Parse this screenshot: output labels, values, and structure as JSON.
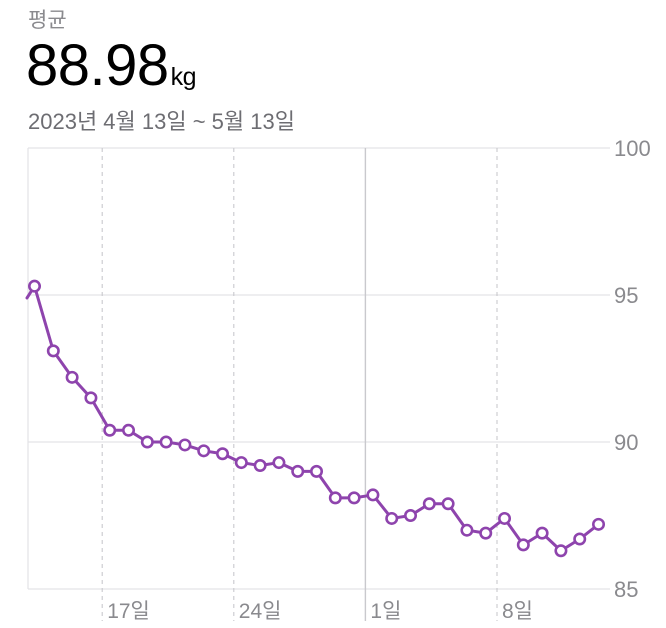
{
  "header": {
    "label": "평균",
    "value": "88.98",
    "unit": "kg",
    "range": "2023년 4월 13일 ~ 5월 13일"
  },
  "chart_data": {
    "type": "line",
    "ylim": [
      85,
      100
    ],
    "y_ticks": [
      100,
      95,
      90,
      85
    ],
    "x_ticks": [
      {
        "day": 4,
        "label": "17일"
      },
      {
        "day": 11,
        "label": "24일"
      },
      {
        "day": 18,
        "label": "1일"
      },
      {
        "day": 25,
        "label": "8일"
      }
    ],
    "series_color": "#8e44ad",
    "points": [
      {
        "day": 0,
        "value": 94.9
      },
      {
        "day": 0.4,
        "value": 95.3
      },
      {
        "day": 1.4,
        "value": 93.1
      },
      {
        "day": 2.4,
        "value": 92.2
      },
      {
        "day": 3.4,
        "value": 91.5
      },
      {
        "day": 4.4,
        "value": 90.4
      },
      {
        "day": 5.4,
        "value": 90.4
      },
      {
        "day": 6.4,
        "value": 90.0
      },
      {
        "day": 7.4,
        "value": 90.0
      },
      {
        "day": 8.4,
        "value": 89.9
      },
      {
        "day": 9.4,
        "value": 89.7
      },
      {
        "day": 10.4,
        "value": 89.6
      },
      {
        "day": 11.4,
        "value": 89.3
      },
      {
        "day": 12.4,
        "value": 89.2
      },
      {
        "day": 13.4,
        "value": 89.3
      },
      {
        "day": 14.4,
        "value": 89.0
      },
      {
        "day": 15.4,
        "value": 89.0
      },
      {
        "day": 16.4,
        "value": 88.1
      },
      {
        "day": 17.4,
        "value": 88.1
      },
      {
        "day": 18.4,
        "value": 88.2
      },
      {
        "day": 19.4,
        "value": 87.4
      },
      {
        "day": 20.4,
        "value": 87.5
      },
      {
        "day": 21.4,
        "value": 87.9
      },
      {
        "day": 22.4,
        "value": 87.9
      },
      {
        "day": 23.4,
        "value": 87.0
      },
      {
        "day": 24.4,
        "value": 86.9
      },
      {
        "day": 25.4,
        "value": 87.4
      },
      {
        "day": 26.4,
        "value": 86.5
      },
      {
        "day": 27.4,
        "value": 86.9
      },
      {
        "day": 28.4,
        "value": 86.3
      },
      {
        "day": 29.4,
        "value": 86.7
      },
      {
        "day": 30.4,
        "value": 87.2
      }
    ]
  }
}
